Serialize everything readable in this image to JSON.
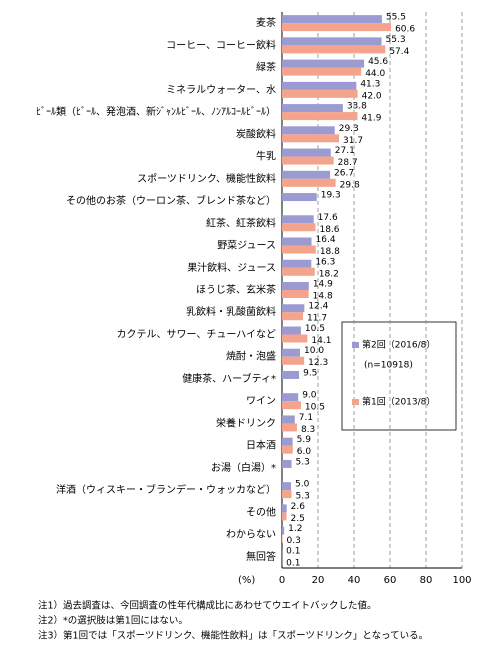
{
  "chart_data": {
    "type": "bar",
    "orientation": "horizontal",
    "categories": [
      "麦茶",
      "コーヒー、コーヒー飲料",
      "緑茶",
      "ミネラルウォーター、水",
      "ﾋﾞｰﾙ類（ﾋﾞｰﾙ、発泡酒、新ｼﾞｬﾝﾙﾋﾞｰﾙ、ﾉﾝｱﾙｺｰﾙﾋﾞｰﾙ）",
      "炭酸飲料",
      "牛乳",
      "スポーツドリンク、機能性飲料",
      "その他のお茶（ウーロン茶、ブレンド茶など）",
      "紅茶、紅茶飲料",
      "野菜ジュース",
      "果汁飲料、ジュース",
      "ほうじ茶、玄米茶",
      "乳飲料・乳酸菌飲料",
      "カクテル、サワー、チューハイなど",
      "焼酎・泡盛",
      "健康茶、ハーブティ*",
      "ワイン",
      "栄養ドリンク",
      "日本酒",
      "お湯（白湯）*",
      "洋酒（ウィスキー・ブランデー・ウォッカなど）",
      "その他",
      "わからない",
      "無回答"
    ],
    "series": [
      {
        "name": "第2回（2016/8）",
        "color": "#9b9bd2",
        "values": [
          55.5,
          55.3,
          45.6,
          41.3,
          33.8,
          29.3,
          27.1,
          26.7,
          19.3,
          17.6,
          16.4,
          16.3,
          14.9,
          12.4,
          10.5,
          10.0,
          9.5,
          9.0,
          7.1,
          5.9,
          5.3,
          5.0,
          2.6,
          1.2,
          0.1
        ],
        "value_labels": [
          "55.5",
          "55.3",
          "45.6",
          "41.3",
          "33.8",
          "29.3",
          "27.1",
          "26.7",
          "19.3",
          "17.6",
          "16.4",
          "16.3",
          "14.9",
          "12.4",
          "10.5",
          "10.0",
          "9.5",
          "9.0",
          "7.1",
          "5.9",
          "5.3",
          "5.0",
          "2.6",
          "1.2",
          "0.1"
        ]
      },
      {
        "name": "第1回（2013/8）",
        "color": "#f4a38c",
        "values": [
          60.6,
          57.4,
          44.0,
          42.0,
          41.9,
          31.7,
          28.7,
          29.8,
          null,
          18.6,
          18.8,
          18.2,
          14.8,
          11.7,
          14.1,
          12.3,
          null,
          10.5,
          8.3,
          6.0,
          null,
          5.3,
          2.5,
          0.3,
          0.1
        ],
        "value_labels": [
          "60.6",
          "57.4",
          "44.0",
          "42.0",
          "41.9",
          "31.7",
          "28.7",
          "29.8",
          null,
          "18.6",
          "18.8",
          "18.2",
          "14.8",
          "11.7",
          "14.1",
          "12.3",
          null,
          "10.5",
          "8.3",
          "6.0",
          null,
          "5.3",
          "2.5",
          "0.3",
          "0.1"
        ]
      }
    ],
    "legend_note": "(n=10918)",
    "x_label": "(%)",
    "xlim": [
      0,
      100
    ],
    "xticks": [
      0,
      20,
      40,
      60,
      80,
      100
    ],
    "grid": true,
    "notes": [
      "注1）過去調査は、今回調査の性年代構成比にあわせてウエイトバックした値。",
      "注2）*の選択肢は第1回にはない。",
      "注3）第1回では「スポーツドリンク、機能性飲料」は「スポーツドリンク」となっている。"
    ]
  }
}
